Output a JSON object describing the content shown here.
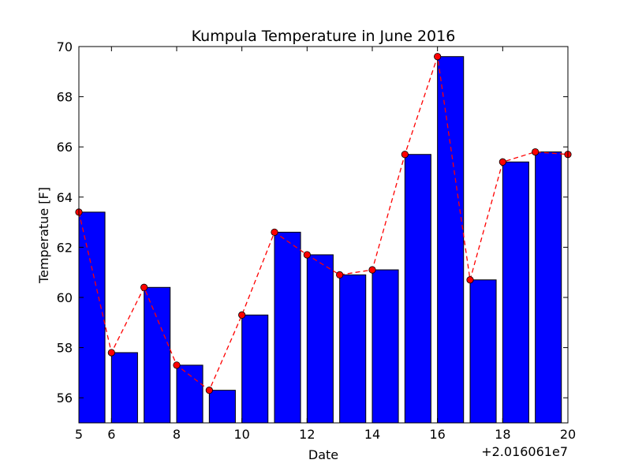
{
  "chart_data": {
    "type": "bar",
    "title": "Kumpula Temperature in June 2016",
    "xlabel": "Date",
    "ylabel": "Temperatue [F]",
    "x_offset_label": "+2.016061e7",
    "x": [
      5,
      6,
      7,
      8,
      9,
      10,
      11,
      12,
      13,
      14,
      15,
      16,
      17,
      18,
      19,
      20
    ],
    "values": [
      63.4,
      57.8,
      60.4,
      57.3,
      56.3,
      59.3,
      62.6,
      61.7,
      60.9,
      61.1,
      65.7,
      69.6,
      60.7,
      65.4,
      65.8,
      65.7
    ],
    "xlim": [
      5,
      20
    ],
    "ylim": [
      55,
      70
    ],
    "x_ticks": [
      6,
      8,
      10,
      12,
      14,
      16,
      18,
      20
    ],
    "y_ticks": [
      56,
      58,
      60,
      62,
      64,
      66,
      68,
      70
    ],
    "bar_color": "#0000ff",
    "line_color": "#ff0000",
    "line_style": "dashed",
    "grid": false
  }
}
